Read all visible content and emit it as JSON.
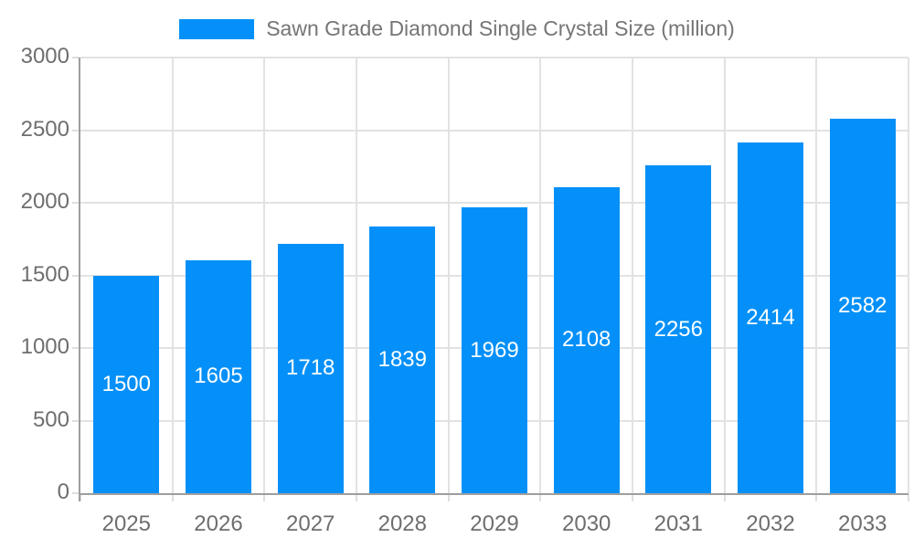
{
  "legend": {
    "label": "Sawn Grade Diamond Single Crystal Size (million)"
  },
  "chart_data": {
    "type": "bar",
    "title": "Sawn Grade Diamond Single Crystal Size (million)",
    "categories": [
      "2025",
      "2026",
      "2027",
      "2028",
      "2029",
      "2030",
      "2031",
      "2032",
      "2033"
    ],
    "values": [
      1500,
      1605,
      1718,
      1839,
      1969,
      2108,
      2256,
      2414,
      2582
    ],
    "xlabel": "",
    "ylabel": "",
    "ylim": [
      0,
      3000
    ],
    "yticks": [
      0,
      500,
      1000,
      1500,
      2000,
      2500,
      3000
    ],
    "grid": true,
    "legend_position": "top",
    "value_labels": "inside-center",
    "colors": {
      "bar": "#0490f8",
      "bar_value_text": "#ffffff",
      "axis_text": "#6e6e6e",
      "legend_text": "#757575",
      "axis_line": "#9e9e9e",
      "gridline": "#e2e2e2",
      "tick": "#dedede",
      "background": "#ffffff"
    }
  }
}
